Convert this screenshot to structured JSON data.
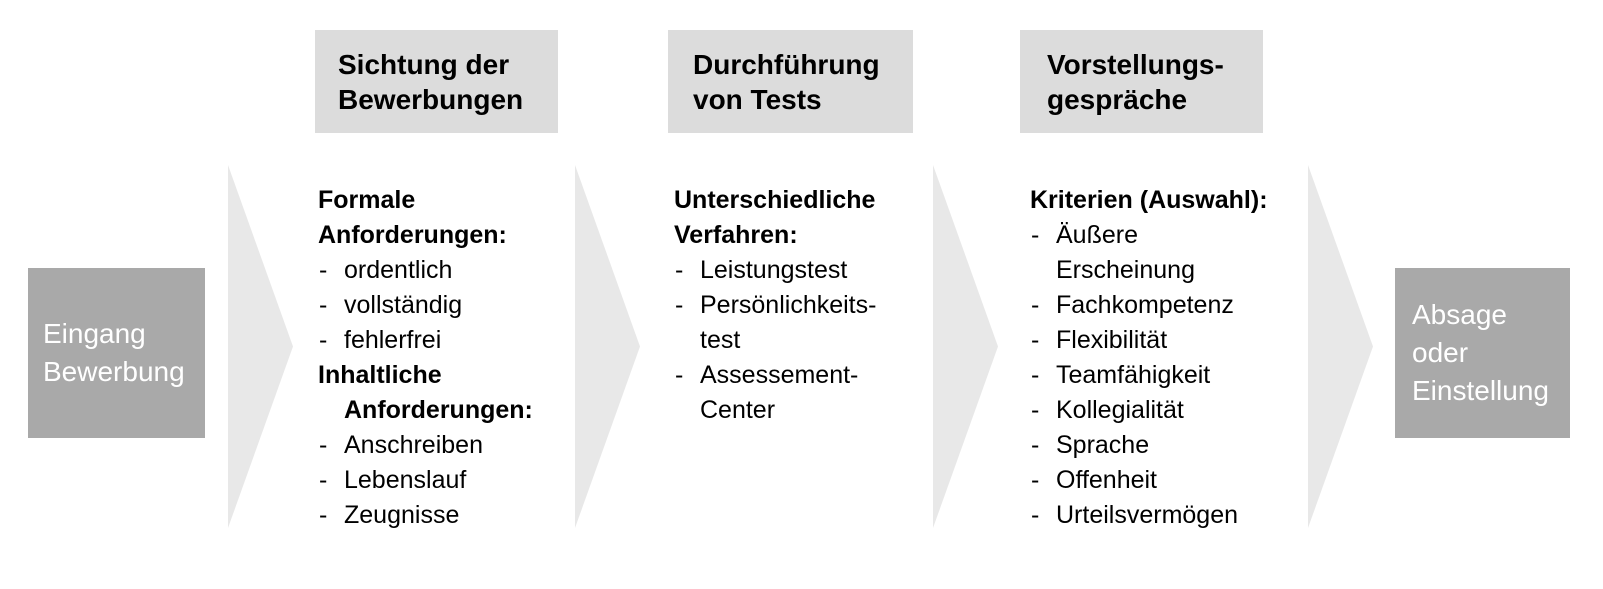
{
  "bullet": "-",
  "colors": {
    "dark_box": "#a9a9a9",
    "dark_box_text": "#ffffff",
    "header_box": "#dcdcdc",
    "arrow": "#e8e8e8",
    "text": "#000000",
    "background": "#ffffff"
  },
  "start_box": {
    "lines": [
      "Eingang",
      "Bewerbung"
    ]
  },
  "end_box": {
    "lines": [
      "Absage",
      "oder",
      "Einstellung"
    ]
  },
  "stages": [
    {
      "header_lines": [
        "Sichtung der",
        "Bewerbungen"
      ],
      "lines": [
        {
          "style": "heading",
          "text": "Formale"
        },
        {
          "style": "heading",
          "text": "Anforderungen:"
        },
        {
          "style": "item",
          "text": "ordentlich"
        },
        {
          "style": "item",
          "text": "vollständig"
        },
        {
          "style": "item",
          "text": "fehlerfrei"
        },
        {
          "style": "heading",
          "text": "Inhaltliche"
        },
        {
          "style": "heading-indent",
          "text": "Anforderungen:"
        },
        {
          "style": "item",
          "text": "Anschreiben"
        },
        {
          "style": "item",
          "text": "Lebenslauf"
        },
        {
          "style": "item",
          "text": "Zeugnisse"
        }
      ]
    },
    {
      "header_lines": [
        "Durchführung",
        "von Tests"
      ],
      "lines": [
        {
          "style": "heading",
          "text": "Unterschiedliche"
        },
        {
          "style": "heading",
          "text": "Verfahren:"
        },
        {
          "style": "item",
          "text": "Leistungstest"
        },
        {
          "style": "item",
          "text": "Persönlichkeits-"
        },
        {
          "style": "continuation",
          "text": "test"
        },
        {
          "style": "item",
          "text": "Assessement-"
        },
        {
          "style": "continuation",
          "text": "Center"
        }
      ]
    },
    {
      "header_lines": [
        "Vorstellungs-",
        "gespräche"
      ],
      "lines": [
        {
          "style": "heading",
          "text": "Kriterien (Auswahl):"
        },
        {
          "style": "item",
          "text": "Äußere"
        },
        {
          "style": "continuation",
          "text": "Erscheinung"
        },
        {
          "style": "item",
          "text": "Fachkompetenz"
        },
        {
          "style": "item",
          "text": "Flexibilität"
        },
        {
          "style": "item",
          "text": "Teamfähigkeit"
        },
        {
          "style": "item",
          "text": "Kollegialität"
        },
        {
          "style": "item",
          "text": "Sprache"
        },
        {
          "style": "item",
          "text": "Offenheit"
        },
        {
          "style": "item",
          "text": "Urteilsvermögen"
        }
      ]
    }
  ]
}
